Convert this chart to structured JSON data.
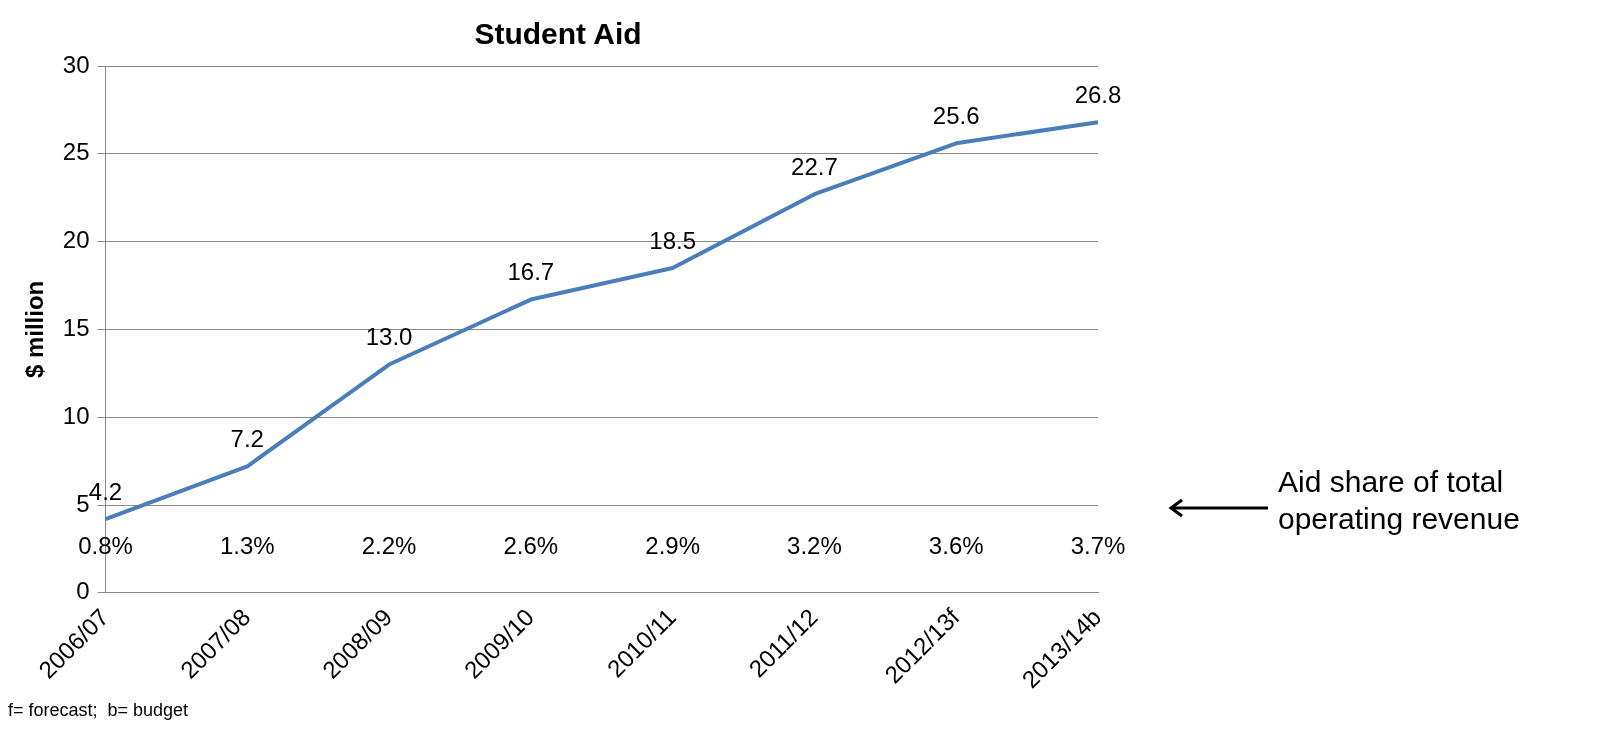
{
  "chart_data": {
    "type": "line",
    "title": "Student Aid",
    "ylabel": "$ million",
    "categories": [
      "2006/07",
      "2007/08",
      "2008/09",
      "2009/10",
      "2010/11",
      "2011/12",
      "2012/13f",
      "2013/14b"
    ],
    "series": [
      {
        "color": "#4a7ebb",
        "values": [
          4.2,
          7.2,
          13.0,
          16.7,
          18.5,
          22.7,
          25.6,
          26.8
        ],
        "value_labels": [
          "4.2",
          "7.2",
          "13.0",
          "16.7",
          "18.5",
          "22.7",
          "25.6",
          "26.8"
        ]
      }
    ],
    "ylim": [
      0,
      30
    ],
    "yticks": [
      0,
      5,
      10,
      15,
      20,
      25,
      30
    ],
    "grid": "y",
    "legend": false,
    "marker": "none",
    "annotations": [
      "0.8%",
      "1.3%",
      "2.2%",
      "2.6%",
      "2.9%",
      "3.2%",
      "3.6%",
      "3.7%",
      "Aid share of total operating revenue",
      "f= forecast;  b= budget"
    ]
  }
}
